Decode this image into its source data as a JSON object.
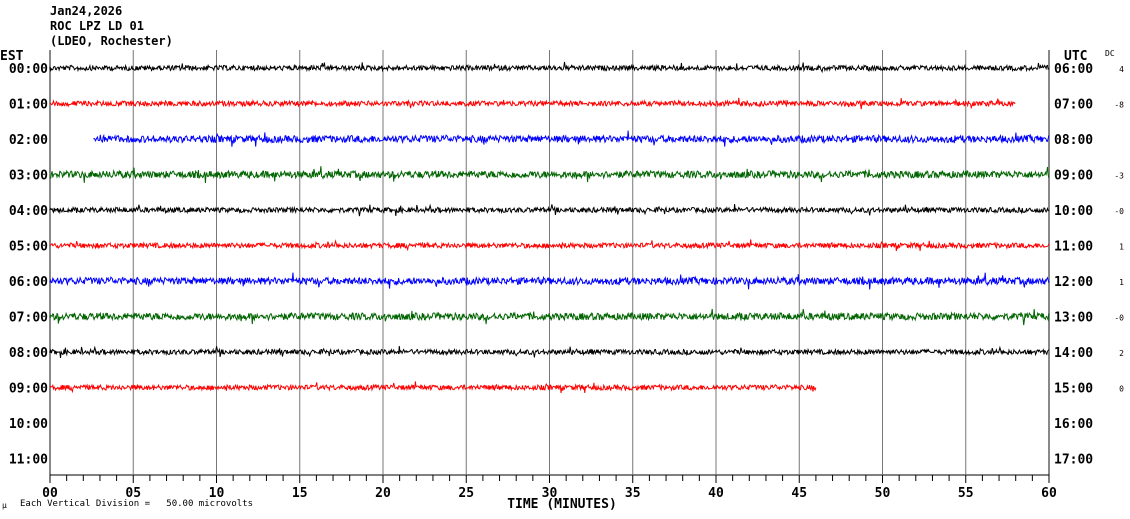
{
  "header": {
    "date": "Jan24,2026",
    "station": "ROC LPZ LD 01",
    "location": "(LDEO, Rochester)"
  },
  "footer": {
    "mu_symbol": "µ",
    "scale_text": "Each Vertical Division =   50.00 microvolts"
  },
  "chart_data": {
    "type": "line",
    "title": "ROC LPZ LD 01 helicorder",
    "xlabel": "TIME (MINUTES)",
    "xlim": [
      0,
      60
    ],
    "x_ticks": [
      "00",
      "05",
      "10",
      "15",
      "20",
      "25",
      "30",
      "35",
      "40",
      "45",
      "50",
      "55",
      "60"
    ],
    "left_axis_title": "EST",
    "right_axis_title": "UTC",
    "dc_title": "DC",
    "rows": [
      {
        "est": "00:00",
        "utc": "06:00",
        "dc": "4",
        "color": "#000000",
        "start": 0,
        "end": 60
      },
      {
        "est": "01:00",
        "utc": "07:00",
        "dc": "-8",
        "color": "#ff0000",
        "start": 0,
        "end": 58
      },
      {
        "est": "02:00",
        "utc": "08:00",
        "dc": "",
        "color": "#0000ff",
        "start": 2.6,
        "end": 60
      },
      {
        "est": "03:00",
        "utc": "09:00",
        "dc": "-3",
        "color": "#006400",
        "start": 0,
        "end": 60
      },
      {
        "est": "04:00",
        "utc": "10:00",
        "dc": "-0",
        "color": "#000000",
        "start": 0,
        "end": 60
      },
      {
        "est": "05:00",
        "utc": "11:00",
        "dc": "1",
        "color": "#ff0000",
        "start": 0,
        "end": 60
      },
      {
        "est": "06:00",
        "utc": "12:00",
        "dc": "1",
        "color": "#0000ff",
        "start": 0,
        "end": 60
      },
      {
        "est": "07:00",
        "utc": "13:00",
        "dc": "-0",
        "color": "#006400",
        "start": 0,
        "end": 60
      },
      {
        "est": "08:00",
        "utc": "14:00",
        "dc": "2",
        "color": "#000000",
        "start": 0,
        "end": 60
      },
      {
        "est": "09:00",
        "utc": "15:00",
        "dc": "0",
        "color": "#ff0000",
        "start": 0,
        "end": 46
      },
      {
        "est": "10:00",
        "utc": "16:00",
        "dc": "",
        "color": "#000000",
        "start": null,
        "end": null
      },
      {
        "est": "11:00",
        "utc": "17:00",
        "dc": "",
        "color": "#000000",
        "start": null,
        "end": null
      }
    ]
  }
}
